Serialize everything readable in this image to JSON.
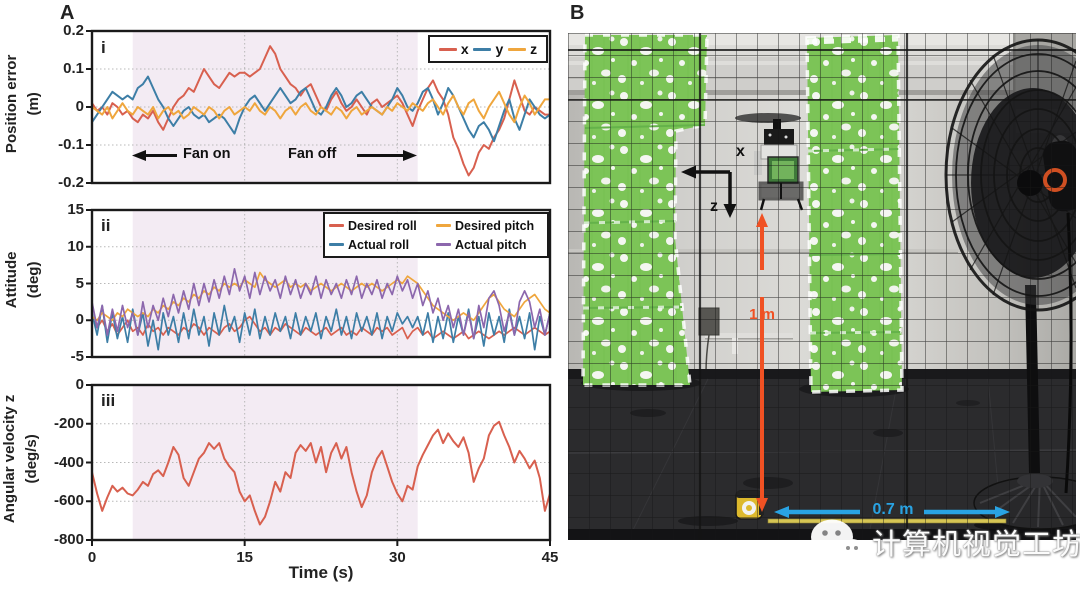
{
  "panels": {
    "a_label": "A",
    "b_label": "B"
  },
  "colors": {
    "red": "#d8604f",
    "blue": "#3d7ea6",
    "orange": "#efa63d",
    "purple": "#8c67ad",
    "band": "#f3ebf3",
    "grid": "#b8b8b8",
    "frame": "#1a1a1a",
    "arrow_orange": "#f05123",
    "arrow_blue": "#29a3e3"
  },
  "chart_data": [
    {
      "type": "line",
      "tag": "i",
      "ylabel": [
        "Position error",
        "(m)"
      ],
      "ylim": [
        -0.2,
        0.2
      ],
      "ytick_labels": [
        "0.2",
        "0.1",
        "0",
        "-0.1",
        "-0.2"
      ],
      "xlim": [
        0,
        45
      ],
      "xgrid": [
        15,
        30
      ],
      "grid": "dotted",
      "fan_band": {
        "start_s": 4,
        "end_s": 32
      },
      "annotations": {
        "fan_on": "Fan on",
        "fan_off": "Fan off"
      },
      "t_start": 0,
      "t_step": 0.5,
      "series": [
        {
          "name": "x",
          "color": "#d8604f",
          "values": [
            0.01,
            -0.01,
            0.0,
            -0.02,
            0.01,
            0.0,
            -0.02,
            -0.01,
            -0.03,
            -0.04,
            -0.02,
            -0.03,
            -0.01,
            -0.04,
            -0.06,
            -0.03,
            0.0,
            0.02,
            0.03,
            0.05,
            0.04,
            0.07,
            0.1,
            0.08,
            0.06,
            0.05,
            0.07,
            0.09,
            0.08,
            0.09,
            0.09,
            0.08,
            0.09,
            0.1,
            0.13,
            0.16,
            0.14,
            0.1,
            0.08,
            0.06,
            0.05,
            0.03,
            0.05,
            0.06,
            0.03,
            0.0,
            -0.01,
            0.02,
            0.04,
            0.01,
            -0.01,
            0.0,
            0.02,
            0.0,
            -0.02,
            0.01,
            0.02,
            0.0,
            0.01,
            0.02,
            0.03,
            0.01,
            -0.02,
            -0.05,
            -0.01,
            0.02,
            0.05,
            0.07,
            0.04,
            0.02,
            -0.02,
            -0.08,
            -0.11,
            -0.15,
            -0.18,
            -0.16,
            -0.12,
            -0.1,
            -0.11,
            -0.08,
            -0.06,
            -0.03,
            0.02,
            0.07,
            0.03,
            -0.01,
            -0.02,
            0.0,
            -0.01,
            -0.02,
            -0.02
          ]
        },
        {
          "name": "y",
          "color": "#3d7ea6",
          "values": [
            -0.04,
            -0.02,
            0.0,
            0.02,
            0.04,
            0.03,
            0.02,
            0.03,
            0.02,
            0.05,
            0.06,
            0.08,
            0.05,
            0.02,
            0.0,
            -0.03,
            -0.05,
            -0.03,
            -0.01,
            0.0,
            -0.02,
            -0.03,
            -0.02,
            -0.04,
            -0.03,
            -0.02,
            -0.03,
            -0.05,
            -0.07,
            -0.03,
            0.0,
            0.02,
            0.03,
            0.01,
            -0.01,
            0.01,
            0.03,
            0.05,
            0.03,
            0.01,
            0.02,
            0.04,
            0.05,
            0.02,
            -0.01,
            -0.02,
            0.0,
            0.03,
            0.05,
            0.03,
            0.0,
            0.01,
            0.03,
            0.04,
            0.02,
            0.0,
            -0.01,
            -0.02,
            0.0,
            0.02,
            0.05,
            0.03,
            0.0,
            -0.01,
            0.01,
            0.04,
            0.05,
            0.02,
            -0.02,
            0.01,
            0.05,
            0.03,
            0.0,
            -0.03,
            -0.06,
            -0.08,
            -0.05,
            -0.04,
            -0.06,
            -0.09,
            -0.05,
            -0.01,
            0.02,
            -0.03,
            -0.06,
            -0.02,
            0.02,
            0.0,
            -0.02,
            -0.03,
            -0.02
          ]
        },
        {
          "name": "z",
          "color": "#efa63d",
          "values": [
            0.0,
            -0.01,
            -0.02,
            0.0,
            -0.03,
            -0.01,
            0.01,
            -0.01,
            -0.02,
            0.0,
            -0.01,
            -0.02,
            0.0,
            -0.03,
            -0.01,
            0.0,
            -0.02,
            -0.01,
            -0.03,
            -0.02,
            0.0,
            -0.01,
            -0.02,
            0.0,
            -0.01,
            -0.03,
            -0.01,
            0.0,
            -0.02,
            -0.01,
            0.0,
            -0.01,
            0.01,
            -0.01,
            -0.02,
            0.0,
            -0.01,
            -0.03,
            -0.01,
            0.0,
            -0.02,
            0.0,
            0.01,
            -0.01,
            -0.02,
            0.0,
            -0.01,
            -0.02,
            0.0,
            -0.01,
            -0.03,
            -0.01,
            0.0,
            -0.02,
            -0.01,
            0.0,
            -0.01,
            -0.02,
            0.0,
            -0.01,
            0.01,
            0.0,
            -0.01,
            0.01,
            0.0,
            -0.01,
            0.01,
            0.02,
            0.0,
            -0.02,
            0.01,
            0.03,
            0.0,
            -0.02,
            0.01,
            0.02,
            -0.01,
            -0.03,
            0.0,
            0.02,
            0.04,
            0.01,
            -0.02,
            -0.04,
            0.0,
            0.03,
            0.01,
            -0.02,
            0.0,
            0.02,
            0.02
          ]
        }
      ]
    },
    {
      "type": "line",
      "tag": "ii",
      "ylabel": [
        "Attitude",
        "(deg)"
      ],
      "ylim": [
        -5,
        15
      ],
      "ytick_labels": [
        "15",
        "10",
        "5",
        "0",
        "-5"
      ],
      "xlim": [
        0,
        45
      ],
      "xgrid": [
        15,
        30
      ],
      "grid": "dotted",
      "fan_band": {
        "start_s": 4,
        "end_s": 32
      },
      "t_start": 0,
      "t_step": 0.5,
      "series": [
        {
          "name": "Desired roll",
          "color": "#d8604f",
          "values": [
            0.5,
            -1,
            0,
            -1.5,
            -0.5,
            -2,
            -1,
            0,
            -1.5,
            -1,
            -2,
            -0.5,
            -1.5,
            -1,
            -2,
            -1,
            -1.5,
            -2,
            -1,
            -1.5,
            -0.5,
            -1,
            -2,
            -1,
            -1.5,
            -2,
            -1,
            -0.5,
            -1.5,
            -1,
            0,
            0.5,
            -0.5,
            -1.5,
            -1,
            -2,
            -1,
            -1.5,
            -0.5,
            -1,
            -1.5,
            -2,
            -1,
            -1.5,
            -2,
            -1.5,
            -1,
            -2,
            -1.5,
            -1,
            -2,
            -1.5,
            -2,
            -1,
            -1.5,
            -2,
            -1,
            -1.5,
            -1,
            -2,
            -1.5,
            -1,
            -2.5,
            -1.5,
            -1,
            -2,
            -1.5,
            -2.5,
            -2,
            -1.5,
            -2,
            -2.5,
            -2,
            -1.5,
            -2.5,
            -2,
            -1.5,
            -2,
            -2.5,
            -2,
            -1.5,
            -2,
            -1.5,
            -1,
            -1.5,
            -2,
            -1.5,
            -1,
            -1.5,
            -2,
            -1.5
          ]
        },
        {
          "name": "Actual roll",
          "color": "#3d7ea6",
          "values": [
            1,
            -2,
            2,
            -3,
            1,
            -2.5,
            0.5,
            -3,
            1.5,
            -2,
            1,
            -3.5,
            0,
            -4,
            1,
            -2,
            0.5,
            -3,
            1,
            -2.5,
            1.5,
            -2,
            0.5,
            -3.5,
            1,
            -2,
            2,
            -1.5,
            0.5,
            -3,
            1,
            -2,
            1.5,
            -2.5,
            0.5,
            -2,
            1,
            -1.5,
            0.5,
            -2.5,
            1,
            -2,
            0.5,
            -1.5,
            1,
            -2.5,
            0.5,
            -1.5,
            1.5,
            -2,
            0.5,
            -2.5,
            1,
            -1.5,
            0.5,
            -2,
            1,
            -2.5,
            0.5,
            -1.5,
            1,
            -0.5,
            0.5,
            -1,
            0.5,
            -2,
            1,
            -3,
            0.5,
            -2.5,
            1,
            -3,
            0.5,
            -2,
            1.5,
            -2.5,
            0.5,
            -3.5,
            1,
            -2,
            0.5,
            -3,
            1.5,
            -2,
            0.5,
            -2.5,
            1,
            -4,
            0.5,
            -2,
            1
          ]
        },
        {
          "name": "Desired pitch",
          "color": "#efa63d",
          "values": [
            0.5,
            0,
            1,
            0.5,
            0,
            1,
            0.5,
            1.5,
            1,
            0.5,
            1,
            0.5,
            1.5,
            1,
            2,
            1.5,
            2.5,
            2,
            3,
            2.5,
            3.5,
            3,
            4,
            3.5,
            4.5,
            4,
            5,
            4.5,
            5,
            4.5,
            5.5,
            5,
            4.5,
            6.5,
            5.5,
            5,
            4.5,
            5,
            5.5,
            4.5,
            5,
            4.5,
            5,
            4,
            4.5,
            5,
            4.5,
            4,
            4.5,
            5,
            4.5,
            4,
            4.5,
            5,
            4.5,
            5,
            4.5,
            4,
            4.5,
            5,
            5.5,
            5,
            6,
            5.5,
            5,
            4,
            3,
            2,
            1.5,
            1,
            0.5,
            0,
            0.5,
            1,
            0.5,
            0,
            1,
            2,
            3,
            3.5,
            2.5,
            1.5,
            1,
            0.5,
            1.5,
            2.5,
            3,
            3.5,
            2.5,
            1.5,
            1
          ]
        },
        {
          "name": "Actual pitch",
          "color": "#8c67ad",
          "values": [
            2.5,
            -1,
            2,
            -2,
            1.5,
            -1.5,
            2,
            -1,
            1,
            -2,
            2.5,
            -1,
            2,
            0,
            3,
            0.5,
            3.5,
            1,
            4,
            1.5,
            5,
            2,
            5,
            2.5,
            5.5,
            3,
            6,
            3.5,
            7,
            4,
            6,
            3,
            6.5,
            3.5,
            6,
            4,
            5.5,
            3,
            6,
            3.5,
            5.5,
            3,
            5,
            3.5,
            6,
            3,
            5.5,
            3.5,
            5,
            3,
            5.5,
            3.5,
            6,
            3,
            5,
            3.5,
            5.5,
            3,
            5,
            3.5,
            6,
            4,
            5.5,
            3,
            5,
            2,
            4,
            1,
            3,
            0,
            2,
            -1,
            1.5,
            -2,
            1,
            -2.5,
            2,
            -1,
            3,
            4,
            2,
            -1.5,
            1,
            -2,
            2.5,
            4,
            2.5,
            -1,
            1.5,
            -2,
            1
          ]
        }
      ]
    },
    {
      "type": "line",
      "tag": "iii",
      "ylabel": [
        "Angular velocity z",
        "(deg/s)"
      ],
      "ylim": [
        -800,
        0
      ],
      "ytick_labels": [
        "0",
        "-200",
        "-400",
        "-600",
        "-800"
      ],
      "xlim": [
        0,
        45
      ],
      "xgrid": [
        15,
        30
      ],
      "grid": "dotted",
      "xlabel": "Time (s)",
      "xtick_labels": [
        "0",
        "15",
        "30",
        "45"
      ],
      "fan_band": {
        "start_s": 4,
        "end_s": 32
      },
      "t_start": 0,
      "t_step": 0.5,
      "series": [
        {
          "name": "angular velocity z",
          "color": "#d8604f",
          "values": [
            -450,
            -560,
            -650,
            -580,
            -520,
            -550,
            -530,
            -560,
            -570,
            -540,
            -500,
            -520,
            -460,
            -440,
            -470,
            -400,
            -320,
            -360,
            -480,
            -520,
            -450,
            -380,
            -350,
            -300,
            -330,
            -300,
            -380,
            -420,
            -450,
            -550,
            -600,
            -570,
            -650,
            -720,
            -680,
            -600,
            -500,
            -550,
            -450,
            -480,
            -350,
            -310,
            -340,
            -300,
            -400,
            -320,
            -450,
            -350,
            -300,
            -380,
            -320,
            -450,
            -550,
            -630,
            -570,
            -450,
            -380,
            -340,
            -420,
            -500,
            -560,
            -600,
            -520,
            -540,
            -420,
            -360,
            -310,
            -260,
            -230,
            -300,
            -250,
            -290,
            -320,
            -270,
            -350,
            -500,
            -430,
            -380,
            -260,
            -210,
            -190,
            -260,
            -320,
            -400,
            -340,
            -380,
            -430,
            -390,
            -480,
            -650,
            -560
          ]
        }
      ]
    }
  ],
  "photo_panel": {
    "label": "B",
    "axis_x_label": "x",
    "axis_z_label": "z",
    "height_annotation": "1 m",
    "distance_annotation": "0.7 m",
    "watermark_text": "计算机视觉工坊"
  }
}
